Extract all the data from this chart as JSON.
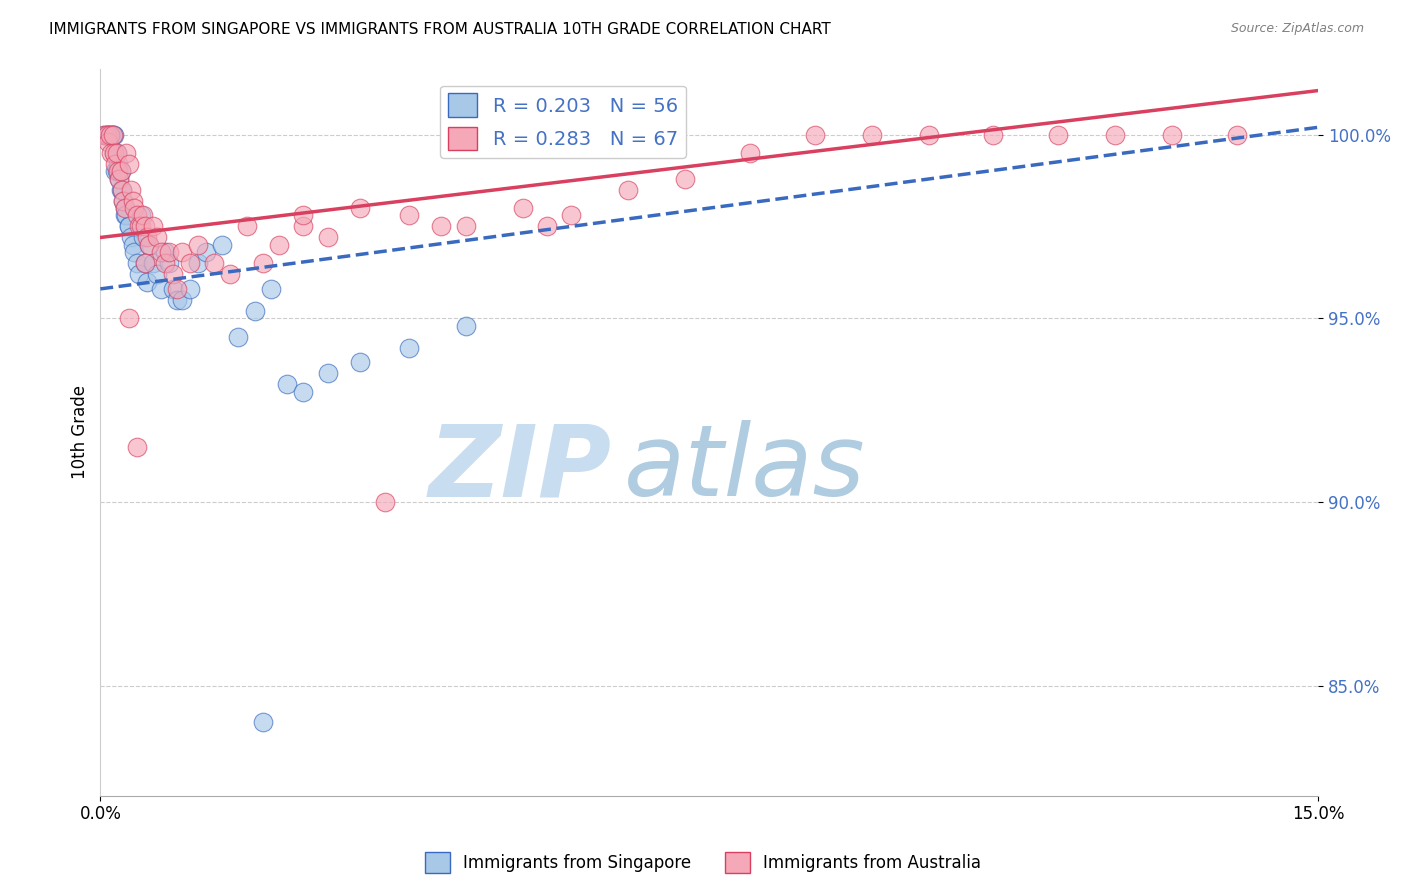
{
  "title": "IMMIGRANTS FROM SINGAPORE VS IMMIGRANTS FROM AUSTRALIA 10TH GRADE CORRELATION CHART",
  "source": "Source: ZipAtlas.com",
  "ylabel": "10th Grade",
  "xmin": 0.0,
  "xmax": 15.0,
  "ymin": 82.0,
  "ymax": 101.8,
  "R_singapore": 0.203,
  "N_singapore": 56,
  "R_australia": 0.283,
  "N_australia": 67,
  "color_singapore": "#a8c8e8",
  "color_australia": "#f4a8b8",
  "trendline_singapore_color": "#3a6abf",
  "trendline_australia_color": "#d94060",
  "watermark_zip": "ZIP",
  "watermark_atlas": "atlas",
  "watermark_color_zip": "#c8ddf0",
  "watermark_color_atlas": "#b0cce0",
  "singapore_x": [
    0.05,
    0.08,
    0.1,
    0.1,
    0.12,
    0.13,
    0.15,
    0.15,
    0.17,
    0.18,
    0.2,
    0.2,
    0.22,
    0.23,
    0.25,
    0.25,
    0.27,
    0.28,
    0.3,
    0.3,
    0.32,
    0.35,
    0.35,
    0.38,
    0.4,
    0.42,
    0.45,
    0.48,
    0.5,
    0.52,
    0.55,
    0.58,
    0.6,
    0.65,
    0.7,
    0.75,
    0.8,
    0.85,
    0.9,
    0.95,
    1.0,
    1.1,
    1.2,
    1.3,
    1.5,
    1.7,
    1.9,
    2.1,
    2.3,
    2.5,
    2.8,
    3.2,
    3.8,
    4.5,
    0.17,
    2.0
  ],
  "singapore_y": [
    100.0,
    100.0,
    100.0,
    100.0,
    100.0,
    100.0,
    100.0,
    100.0,
    99.5,
    99.0,
    99.5,
    99.0,
    99.2,
    98.8,
    99.0,
    98.5,
    98.5,
    98.2,
    98.0,
    97.8,
    97.8,
    97.5,
    97.5,
    97.2,
    97.0,
    96.8,
    96.5,
    96.2,
    97.8,
    97.2,
    96.5,
    96.0,
    97.0,
    96.5,
    96.2,
    95.8,
    96.8,
    96.5,
    95.8,
    95.5,
    95.5,
    95.8,
    96.5,
    96.8,
    97.0,
    94.5,
    95.2,
    95.8,
    93.2,
    93.0,
    93.5,
    93.8,
    94.2,
    94.8,
    100.0,
    84.0
  ],
  "australia_x": [
    0.05,
    0.08,
    0.1,
    0.12,
    0.13,
    0.15,
    0.17,
    0.18,
    0.2,
    0.22,
    0.23,
    0.25,
    0.27,
    0.28,
    0.3,
    0.32,
    0.35,
    0.38,
    0.4,
    0.42,
    0.45,
    0.48,
    0.5,
    0.52,
    0.55,
    0.58,
    0.6,
    0.65,
    0.7,
    0.75,
    0.8,
    0.85,
    0.9,
    0.95,
    1.0,
    1.1,
    1.2,
    1.4,
    1.6,
    1.8,
    2.0,
    2.2,
    2.5,
    2.8,
    3.2,
    3.8,
    4.5,
    5.2,
    5.8,
    6.5,
    7.2,
    8.0,
    8.8,
    9.5,
    10.2,
    11.0,
    11.8,
    12.5,
    13.2,
    14.0,
    0.35,
    0.45,
    0.55,
    2.5,
    4.2,
    5.5,
    3.5
  ],
  "australia_y": [
    100.0,
    100.0,
    99.8,
    100.0,
    99.5,
    100.0,
    99.5,
    99.2,
    99.5,
    99.0,
    98.8,
    99.0,
    98.5,
    98.2,
    98.0,
    99.5,
    99.2,
    98.5,
    98.2,
    98.0,
    97.8,
    97.5,
    97.5,
    97.8,
    97.5,
    97.2,
    97.0,
    97.5,
    97.2,
    96.8,
    96.5,
    96.8,
    96.2,
    95.8,
    96.8,
    96.5,
    97.0,
    96.5,
    96.2,
    97.5,
    96.5,
    97.0,
    97.5,
    97.2,
    98.0,
    97.8,
    97.5,
    98.0,
    97.8,
    98.5,
    98.8,
    99.5,
    100.0,
    100.0,
    100.0,
    100.0,
    100.0,
    100.0,
    100.0,
    100.0,
    95.0,
    91.5,
    96.5,
    97.8,
    97.5,
    97.5,
    90.0
  ],
  "trendline_sg_x0": 0.0,
  "trendline_sg_y0": 95.8,
  "trendline_sg_x1": 15.0,
  "trendline_sg_y1": 100.2,
  "trendline_au_x0": 0.0,
  "trendline_au_y0": 97.2,
  "trendline_au_x1": 15.0,
  "trendline_au_y1": 101.2
}
